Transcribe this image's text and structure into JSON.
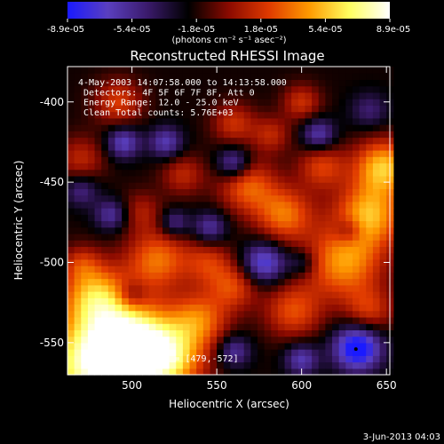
{
  "chart_data": {
    "type": "heatmap",
    "title": "Reconstructed RHESSI Image",
    "xlabel": "Heliocentric X (arcsec)",
    "ylabel": "Heliocentric Y (arcsec)",
    "xlim": [
      462,
      652
    ],
    "ylim": [
      -570,
      -378
    ],
    "xticks": [
      500,
      550,
      600,
      650
    ],
    "yticks": [
      -400,
      -450,
      -500,
      -550
    ],
    "colorbar": {
      "tick_labels": [
        "-8.9e-05",
        "-5.4e-05",
        "-1.8e-05",
        "1.8e-05",
        "5.4e-05",
        "8.9e-05"
      ],
      "range": [
        -8.9e-05,
        8.9e-05
      ],
      "unit_label": "(photons cm⁻² s⁻¹ asec⁻²)",
      "colormap": [
        "#1a1aff",
        "#5a3fbf",
        "#3a1a6a",
        "#000000",
        "#8a0a00",
        "#e03a00",
        "#ff9a00",
        "#ffff60",
        "#ffffff"
      ]
    },
    "info_lines": [
      "4-May-2003 14:07:58.000 to 14:13:58.000",
      "Detectors: 4F 5F 6F 7F 8F, Att 0",
      "Energy Range: 12.0 - 25.0 keV",
      "Clean    Total counts: 5.76E+03"
    ],
    "peak": {
      "label": "Position of Peak = [479,-572]",
      "x": 479,
      "y": -572
    },
    "marker_point": {
      "x": 632,
      "y": -554
    },
    "blobs": [
      {
        "x": 475,
        "y": -565,
        "r": 22,
        "v": 1.0
      },
      {
        "x": 498,
        "y": -548,
        "r": 18,
        "v": 0.9
      },
      {
        "x": 520,
        "y": -560,
        "r": 16,
        "v": 0.85
      },
      {
        "x": 478,
        "y": -520,
        "r": 14,
        "v": 0.7
      },
      {
        "x": 540,
        "y": -535,
        "r": 12,
        "v": 0.55
      },
      {
        "x": 560,
        "y": -515,
        "r": 10,
        "v": 0.45
      },
      {
        "x": 515,
        "y": -498,
        "r": 13,
        "v": 0.6
      },
      {
        "x": 545,
        "y": -500,
        "r": 10,
        "v": 0.4
      },
      {
        "x": 590,
        "y": -470,
        "r": 12,
        "v": 0.6
      },
      {
        "x": 625,
        "y": -500,
        "r": 16,
        "v": 0.7
      },
      {
        "x": 640,
        "y": -470,
        "r": 14,
        "v": 0.75
      },
      {
        "x": 648,
        "y": -440,
        "r": 12,
        "v": 0.8
      },
      {
        "x": 612,
        "y": -440,
        "r": 10,
        "v": 0.45
      },
      {
        "x": 595,
        "y": -530,
        "r": 12,
        "v": 0.5
      },
      {
        "x": 568,
        "y": -452,
        "r": 12,
        "v": 0.55
      },
      {
        "x": 600,
        "y": -400,
        "r": 8,
        "v": 0.4
      },
      {
        "x": 582,
        "y": -420,
        "r": 8,
        "v": 0.35
      },
      {
        "x": 560,
        "y": -413,
        "r": 9,
        "v": 0.4
      },
      {
        "x": 470,
        "y": -435,
        "r": 10,
        "v": 0.35
      },
      {
        "x": 492,
        "y": -400,
        "r": 10,
        "v": 0.45
      },
      {
        "x": 530,
        "y": -445,
        "r": 9,
        "v": 0.35
      },
      {
        "x": 505,
        "y": -468,
        "r": 9,
        "v": 0.3
      },
      {
        "x": 640,
        "y": -530,
        "r": 10,
        "v": 0.4
      },
      {
        "x": 470,
        "y": -500,
        "r": 8,
        "v": 0.3
      },
      {
        "x": 495,
        "y": -425,
        "r": 7,
        "v": -0.55
      },
      {
        "x": 520,
        "y": -425,
        "r": 7,
        "v": -0.5
      },
      {
        "x": 546,
        "y": -478,
        "r": 7,
        "v": -0.45
      },
      {
        "x": 560,
        "y": -438,
        "r": 7,
        "v": -0.55
      },
      {
        "x": 610,
        "y": -420,
        "r": 7,
        "v": -0.5
      },
      {
        "x": 578,
        "y": -500,
        "r": 9,
        "v": -0.65
      },
      {
        "x": 560,
        "y": -555,
        "r": 7,
        "v": -0.45
      },
      {
        "x": 600,
        "y": -560,
        "r": 7,
        "v": -0.5
      },
      {
        "x": 633,
        "y": -553,
        "r": 10,
        "v": -0.9
      },
      {
        "x": 488,
        "y": -470,
        "r": 7,
        "v": -0.45
      },
      {
        "x": 525,
        "y": -475,
        "r": 6,
        "v": -0.4
      },
      {
        "x": 470,
        "y": -455,
        "r": 7,
        "v": -0.35
      },
      {
        "x": 628,
        "y": -480,
        "r": 6,
        "v": -0.35
      },
      {
        "x": 600,
        "y": -500,
        "r": 6,
        "v": -0.3
      },
      {
        "x": 500,
        "y": -520,
        "r": 6,
        "v": -0.3
      },
      {
        "x": 640,
        "y": -405,
        "r": 8,
        "v": -0.3
      }
    ]
  },
  "footer": {
    "timestamp": "3-Jun-2013 04:03"
  }
}
